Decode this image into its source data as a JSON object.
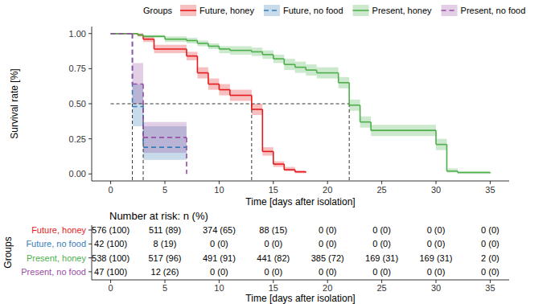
{
  "chart_data": {
    "type": "line",
    "xlabel": "Time [days after isolation]",
    "ylabel": "Survival rate [%]",
    "legend_title": "Groups",
    "legend": "top",
    "xlim": [
      -1.75,
      36.75
    ],
    "ylim": [
      -0.05,
      1.05
    ],
    "xticks": [
      0,
      5,
      10,
      15,
      20,
      25,
      30,
      35
    ],
    "yticks": [
      {
        "value": 0,
        "label": "0.00"
      },
      {
        "value": 0.25,
        "label": "0.25"
      },
      {
        "value": 0.5,
        "label": "0.50"
      },
      {
        "value": 0.75,
        "label": "0.75"
      },
      {
        "value": 1,
        "label": "1.00"
      }
    ],
    "series": [
      {
        "name": "Future, honey",
        "color": "#e41a1c",
        "line_style": "solid",
        "x": [
          0,
          2.5,
          3,
          4,
          7,
          8,
          9,
          10,
          11,
          13,
          14,
          15,
          16,
          17,
          18
        ],
        "values": [
          1,
          0.99,
          0.96,
          0.89,
          0.84,
          0.72,
          0.64,
          0.6,
          0.56,
          0.46,
          0.16,
          0.07,
          0.03,
          0.015,
          0.01
        ],
        "lower": [
          1,
          0.98,
          0.94,
          0.86,
          0.81,
          0.68,
          0.6,
          0.56,
          0.52,
          0.42,
          0.13,
          0.05,
          0.02,
          0.005,
          0
        ],
        "upper": [
          1,
          1,
          0.98,
          0.92,
          0.87,
          0.76,
          0.68,
          0.64,
          0.6,
          0.5,
          0.19,
          0.09,
          0.05,
          0.025,
          0.02
        ]
      },
      {
        "name": "Future, no food",
        "color": "#377eb8",
        "line_style": "dashed",
        "x": [
          0,
          2,
          3,
          7
        ],
        "values": [
          1,
          0.48,
          0.19,
          0.19
        ],
        "lower": [
          1,
          0.34,
          0.1,
          0.1
        ],
        "upper": [
          1,
          0.64,
          0.34,
          0.34
        ]
      },
      {
        "name": "Present, honey",
        "color": "#4daf4a",
        "line_style": "solid",
        "x": [
          0,
          2.5,
          3,
          5,
          7,
          8,
          9,
          10,
          11,
          13,
          14,
          15,
          16,
          17,
          18,
          19,
          21,
          22,
          23,
          24,
          30,
          31,
          32,
          35
        ],
        "values": [
          1,
          0.99,
          0.98,
          0.96,
          0.95,
          0.93,
          0.91,
          0.89,
          0.88,
          0.87,
          0.85,
          0.82,
          0.78,
          0.76,
          0.74,
          0.72,
          0.65,
          0.49,
          0.37,
          0.31,
          0.21,
          0.02,
          0.01,
          0.005
        ],
        "lower": [
          1,
          0.98,
          0.97,
          0.94,
          0.93,
          0.91,
          0.89,
          0.86,
          0.85,
          0.84,
          0.82,
          0.79,
          0.74,
          0.72,
          0.7,
          0.68,
          0.61,
          0.45,
          0.33,
          0.27,
          0.17,
          0.01,
          0,
          0
        ],
        "upper": [
          1,
          1,
          0.99,
          0.98,
          0.97,
          0.95,
          0.93,
          0.91,
          0.91,
          0.9,
          0.88,
          0.85,
          0.82,
          0.8,
          0.78,
          0.76,
          0.69,
          0.53,
          0.41,
          0.35,
          0.25,
          0.04,
          0.02,
          0.01
        ]
      },
      {
        "name": "Present, no food",
        "color": "#984ea3",
        "line_style": "dashed",
        "x": [
          0,
          2,
          3,
          7
        ],
        "values": [
          1,
          0.64,
          0.26,
          0
        ],
        "lower": [
          1,
          0.5,
          0.15,
          0
        ],
        "upper": [
          1,
          0.79,
          0.37,
          0
        ]
      }
    ],
    "median_lines": {
      "y": 0.5,
      "x": [
        2,
        3,
        13,
        22
      ]
    },
    "risk_table": {
      "title": "Number at risk: n (%)",
      "ylabel": "Groups",
      "xlabel": "Time [days after isolation]",
      "xticks": [
        0,
        5,
        10,
        15,
        20,
        25,
        30,
        35
      ],
      "rows": [
        [
          "576 (100)",
          "511 (89)",
          "374 (65)",
          "88 (15)",
          "0 (0)",
          "0 (0)",
          "0 (0)",
          "0 (0)"
        ],
        [
          "42 (100)",
          "8 (19)",
          "0 (0)",
          "0 (0)",
          "0 (0)",
          "0 (0)",
          "0 (0)",
          "0 (0)"
        ],
        [
          "538 (100)",
          "517 (96)",
          "491 (91)",
          "441 (82)",
          "385 (72)",
          "169 (31)",
          "169 (31)",
          "2 (0)"
        ],
        [
          "47 (100)",
          "12 (26)",
          "0 (0)",
          "0 (0)",
          "0 (0)",
          "0 (0)",
          "0 (0)",
          "0 (0)"
        ]
      ]
    }
  }
}
